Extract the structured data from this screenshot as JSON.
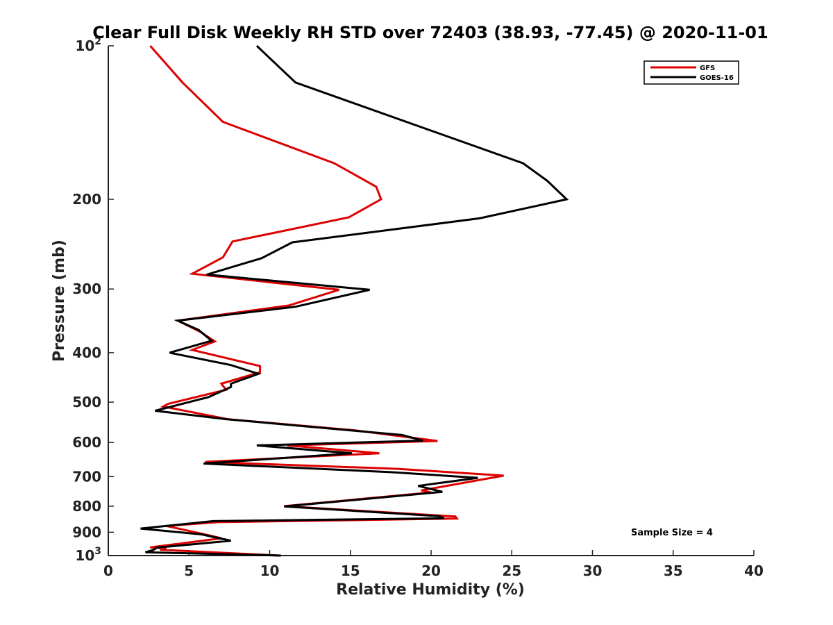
{
  "chart_data": {
    "type": "line",
    "title": "Clear Full Disk Weekly RH STD over 72403 (38.93, -77.45) @ 2020-11-01",
    "xlabel": "Relative Humidity (%)",
    "ylabel": "Pressure (mb)",
    "xlim": [
      0,
      40
    ],
    "ylim": [
      100,
      1000
    ],
    "y_scale": "log",
    "y_reversed": true,
    "grid": false,
    "x_ticks": [
      {
        "value": 0,
        "label": "0"
      },
      {
        "value": 5,
        "label": "5"
      },
      {
        "value": 10,
        "label": "10"
      },
      {
        "value": 15,
        "label": "15"
      },
      {
        "value": 20,
        "label": "20"
      },
      {
        "value": 25,
        "label": "25"
      },
      {
        "value": 30,
        "label": "30"
      },
      {
        "value": 35,
        "label": "35"
      },
      {
        "value": 40,
        "label": "40"
      }
    ],
    "y_ticks": [
      {
        "value": 100,
        "label": "10",
        "sup": "2"
      },
      {
        "value": 200,
        "label": "200"
      },
      {
        "value": 300,
        "label": "300"
      },
      {
        "value": 400,
        "label": "400"
      },
      {
        "value": 500,
        "label": "500"
      },
      {
        "value": 600,
        "label": "600"
      },
      {
        "value": 700,
        "label": "700"
      },
      {
        "value": 800,
        "label": "800"
      },
      {
        "value": 900,
        "label": "900"
      },
      {
        "value": 1000,
        "label": "10",
        "sup": "3"
      }
    ],
    "legend_position": "top-right",
    "annotation": "Sample Size = 4",
    "series": [
      {
        "name": "GFS",
        "color": "#dd0000",
        "points": [
          [
            2.6,
            100
          ],
          [
            4.6,
            118
          ],
          [
            7.1,
            141
          ],
          [
            14.0,
            170
          ],
          [
            16.6,
            189
          ],
          [
            16.9,
            200
          ],
          [
            14.9,
            217
          ],
          [
            7.7,
            242
          ],
          [
            7.1,
            260
          ],
          [
            5.2,
            280
          ],
          [
            14.3,
            301
          ],
          [
            11.2,
            323
          ],
          [
            4.3,
            346
          ],
          [
            5.7,
            364
          ],
          [
            6.6,
            380
          ],
          [
            5.2,
            395
          ],
          [
            9.4,
            425
          ],
          [
            9.4,
            437
          ],
          [
            7.0,
            460
          ],
          [
            7.3,
            473
          ],
          [
            3.7,
            504
          ],
          [
            3.4,
            510
          ],
          [
            7.4,
            540
          ],
          [
            15.3,
            568
          ],
          [
            20.4,
            596
          ],
          [
            11.1,
            608
          ],
          [
            16.8,
            630
          ],
          [
            6.0,
            655
          ],
          [
            18.0,
            676
          ],
          [
            24.5,
            697
          ],
          [
            19.4,
            745
          ],
          [
            20.0,
            752
          ],
          [
            10.9,
            800
          ],
          [
            21.5,
            838
          ],
          [
            21.6,
            846
          ],
          [
            6.8,
            860
          ],
          [
            3.6,
            875
          ],
          [
            6.0,
            909
          ],
          [
            7.0,
            925
          ],
          [
            2.6,
            964
          ],
          [
            3.6,
            968
          ],
          [
            3.2,
            974
          ],
          [
            10.6,
            1000
          ]
        ]
      },
      {
        "name": "GOES-16",
        "color": "#000000",
        "points": [
          [
            9.2,
            100
          ],
          [
            11.6,
            118
          ],
          [
            25.7,
            170
          ],
          [
            27.2,
            184
          ],
          [
            28.4,
            200
          ],
          [
            23.0,
            218
          ],
          [
            11.4,
            243
          ],
          [
            9.5,
            261
          ],
          [
            6.1,
            281
          ],
          [
            16.2,
            301
          ],
          [
            11.6,
            325
          ],
          [
            4.3,
            346
          ],
          [
            5.6,
            361
          ],
          [
            6.4,
            379
          ],
          [
            3.8,
            400
          ],
          [
            7.6,
            423
          ],
          [
            9.3,
            440
          ],
          [
            7.6,
            460
          ],
          [
            7.6,
            467
          ],
          [
            6.2,
            489
          ],
          [
            2.9,
            520
          ],
          [
            7.3,
            540
          ],
          [
            18.2,
            580
          ],
          [
            19.5,
            595
          ],
          [
            9.2,
            608
          ],
          [
            15.1,
            630
          ],
          [
            5.9,
            660
          ],
          [
            17.5,
            686
          ],
          [
            22.9,
            704
          ],
          [
            19.2,
            730
          ],
          [
            20.7,
            750
          ],
          [
            10.9,
            801
          ],
          [
            20.5,
            837
          ],
          [
            20.8,
            845
          ],
          [
            6.5,
            856
          ],
          [
            2.0,
            885
          ],
          [
            5.8,
            909
          ],
          [
            7.6,
            935
          ],
          [
            3.0,
            965
          ],
          [
            2.8,
            975
          ],
          [
            2.3,
            985
          ],
          [
            10.7,
            1000
          ]
        ]
      }
    ]
  }
}
